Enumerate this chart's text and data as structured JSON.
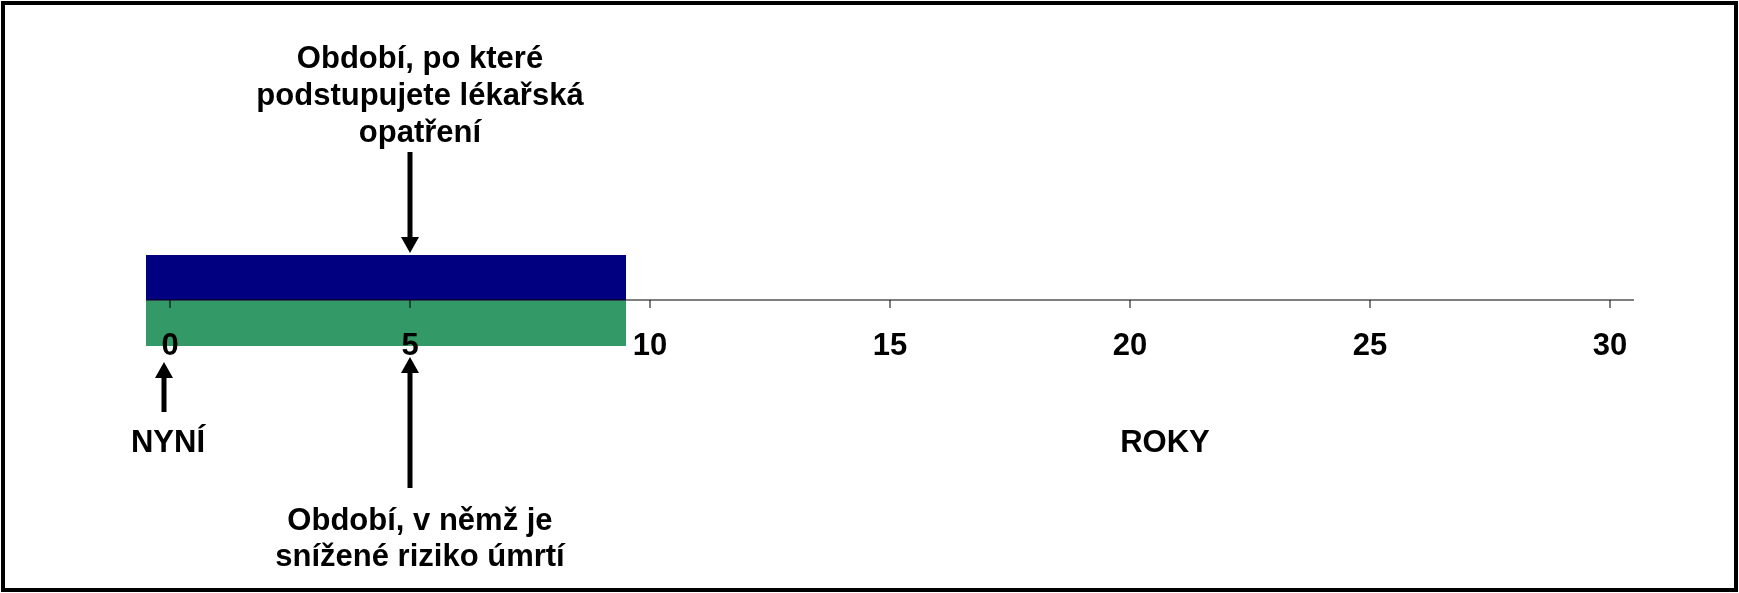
{
  "chart_data": {
    "type": "bar",
    "orientation": "horizontal",
    "categories": [
      null,
      null
    ],
    "values": [
      10,
      10
    ],
    "base": [
      -0.5,
      -0.5
    ],
    "colors": [
      "#000080",
      "#339966"
    ],
    "xlim": [
      -0.5,
      30.5
    ],
    "xticks": [
      0,
      5,
      10,
      15,
      20,
      25,
      30
    ],
    "xlabel": "ROKY",
    "annotations": [
      "Období, po které\npodstupujete lékařská\nopatření",
      "NYNÍ",
      "Období, v němž je\nsnížené riziko úmrtí"
    ]
  }
}
